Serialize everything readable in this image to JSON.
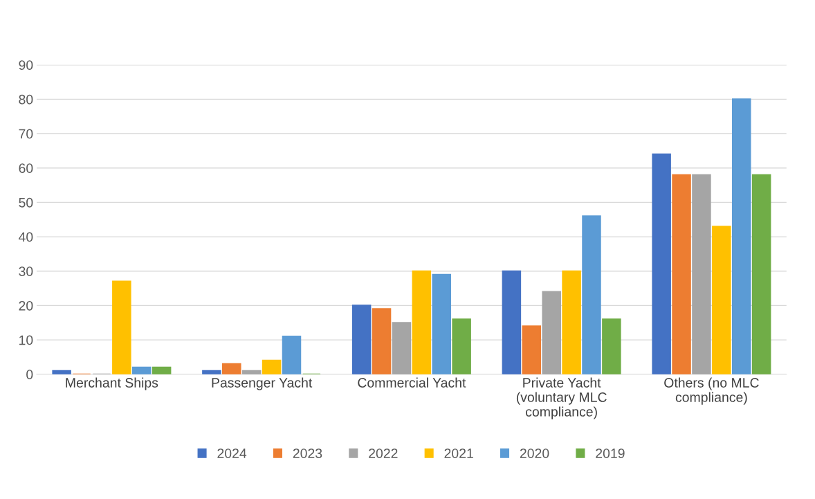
{
  "chart_data": {
    "type": "bar",
    "categories": [
      "Merchant Ships",
      "Passenger Yacht",
      "Commercial Yacht",
      "Private Yacht\n(voluntary MLC\ncompliance)",
      "Others (no MLC\ncompliance)"
    ],
    "series": [
      {
        "name": "2024",
        "color": "#4472c4",
        "values": [
          1,
          1,
          20,
          30,
          64
        ]
      },
      {
        "name": "2023",
        "color": "#ed7d31",
        "values": [
          0,
          3,
          19,
          14,
          58
        ]
      },
      {
        "name": "2022",
        "color": "#a5a5a5",
        "values": [
          0,
          1,
          15,
          24,
          58
        ]
      },
      {
        "name": "2021",
        "color": "#ffc000",
        "values": [
          27,
          4,
          30,
          30,
          43
        ]
      },
      {
        "name": "2020",
        "color": "#5b9bd5",
        "values": [
          2,
          11,
          29,
          46,
          80
        ]
      },
      {
        "name": "2019",
        "color": "#70ad47",
        "values": [
          2,
          0,
          16,
          16,
          58
        ]
      }
    ],
    "ylim": [
      0,
      90
    ],
    "yticks": [
      0,
      10,
      20,
      30,
      40,
      50,
      60,
      70,
      80,
      90
    ],
    "grid": "y",
    "legend": "bottom"
  }
}
